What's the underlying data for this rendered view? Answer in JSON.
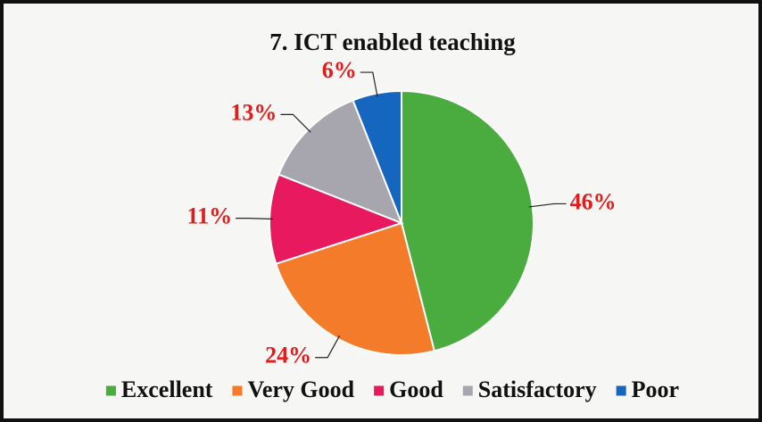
{
  "chart_data": {
    "type": "pie",
    "title": "7. ICT enabled teaching",
    "categories": [
      "Excellent",
      "Very Good",
      "Good",
      "Satisfactory",
      "Poor"
    ],
    "values": [
      46,
      24,
      11,
      13,
      6
    ],
    "value_labels": [
      "46%",
      "24%",
      "11%",
      "13%",
      "6%"
    ],
    "colors": [
      "#4aab3f",
      "#f47b2a",
      "#e8195f",
      "#a7a6ae",
      "#1566be"
    ],
    "legend": "bottom"
  }
}
